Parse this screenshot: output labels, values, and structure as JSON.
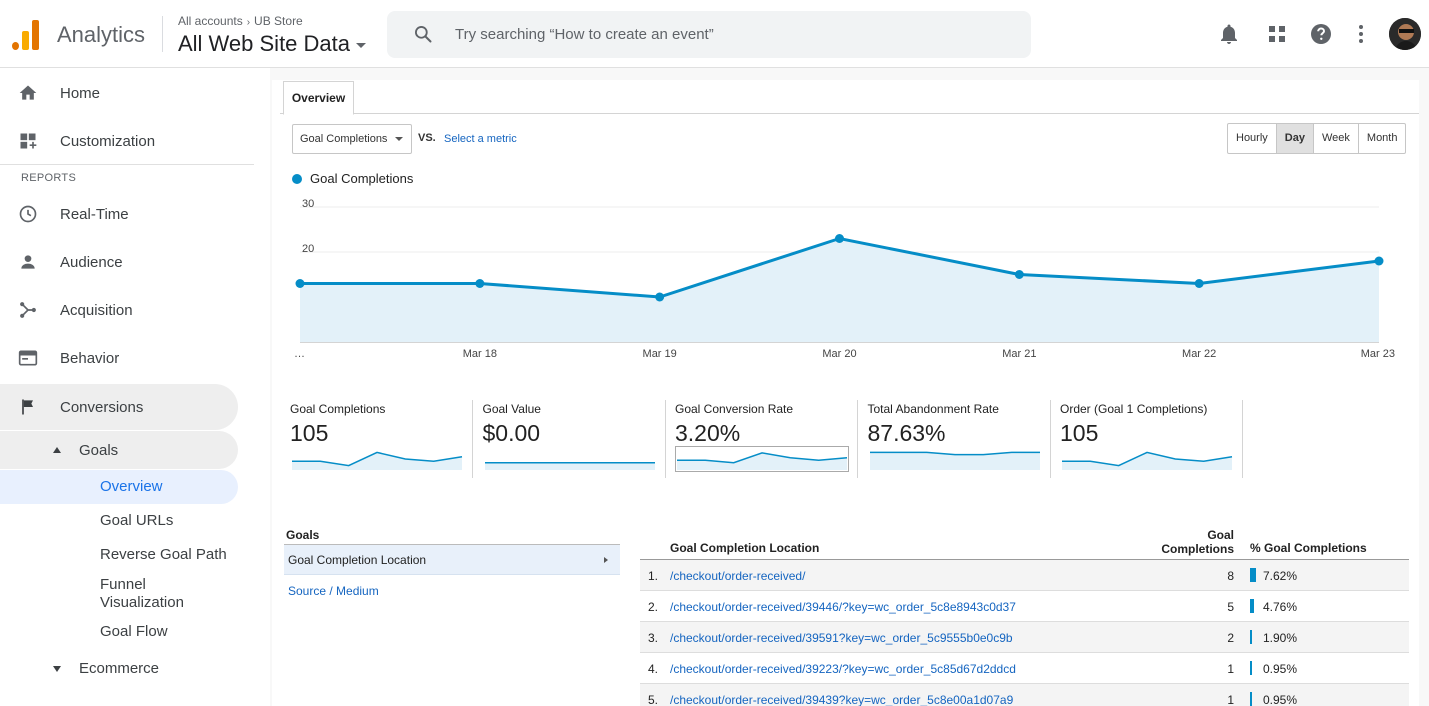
{
  "header": {
    "app_name": "Analytics",
    "breadcrumb_accounts": "All accounts",
    "breadcrumb_arrow": "›",
    "breadcrumb_store": "UB Store",
    "property": "All Web Site Data",
    "search_placeholder": "Try searching “How to create an event”",
    "icons": [
      "bell-icon",
      "apps-grid-icon",
      "help-icon",
      "more-vert-icon"
    ]
  },
  "sidebar": {
    "home": "Home",
    "customization": "Customization",
    "reports_label": "REPORTS",
    "realtime": "Real-Time",
    "audience": "Audience",
    "acquisition": "Acquisition",
    "behavior": "Behavior",
    "conversions": "Conversions",
    "goals": "Goals",
    "overview": "Overview",
    "goal_urls": "Goal URLs",
    "reverse_goal_path": "Reverse Goal Path",
    "funnel_line1": "Funnel",
    "funnel_line2": "Visualization",
    "goal_flow": "Goal Flow",
    "ecommerce": "Ecommerce"
  },
  "main": {
    "tab": "Overview",
    "metric_select": "Goal Completions",
    "vs": "VS.",
    "select_metric": "Select a metric",
    "granularity": [
      {
        "label": "Hourly",
        "active": false
      },
      {
        "label": "Day",
        "active": true
      },
      {
        "label": "Week",
        "active": false
      },
      {
        "label": "Month",
        "active": false
      }
    ],
    "accent": "#058dc7"
  },
  "chart_data": {
    "type": "area",
    "series": [
      {
        "name": "Goal Completions",
        "values": [
          13,
          13,
          10,
          23,
          15,
          13,
          18
        ]
      }
    ],
    "categories": [
      "…",
      "Mar 18",
      "Mar 19",
      "Mar 20",
      "Mar 21",
      "Mar 22",
      "Mar 23"
    ],
    "yticks": [
      10,
      20,
      30
    ],
    "ylim": [
      0,
      30
    ],
    "legend": "top-left",
    "grid": true
  },
  "scorecards": [
    {
      "name": "Goal Completions",
      "value": "105",
      "spark": [
        4,
        4,
        2,
        8,
        5,
        4,
        6
      ]
    },
    {
      "name": "Goal Value",
      "value": "$0.00",
      "spark": [
        1,
        1,
        1,
        1,
        1,
        1,
        1
      ]
    },
    {
      "name": "Goal Conversion Rate",
      "value": "3.20%",
      "spark": [
        4,
        4,
        3,
        7,
        5,
        4,
        5
      ]
    },
    {
      "name": "Total Abandonment Rate",
      "value": "87.63%",
      "spark": [
        8,
        8,
        8,
        7,
        7,
        8,
        8
      ]
    },
    {
      "name": "Order (Goal 1 Completions)",
      "value": "105",
      "spark": [
        4,
        4,
        2,
        8,
        5,
        4,
        6
      ]
    }
  ],
  "goals_panel": {
    "heading": "Goals",
    "selected": "Goal Completion Location",
    "link": "Source / Medium"
  },
  "table": {
    "col_location": "Goal Completion Location",
    "col_count_line1": "Goal",
    "col_count_line2": "Completions",
    "col_pct": "% Goal Completions",
    "rows": [
      {
        "idx": "1.",
        "location": "/checkout/order-received/",
        "count": "8",
        "pct": "7.62%",
        "share": 7.62
      },
      {
        "idx": "2.",
        "location": "/checkout/order-received/39446/?key=wc_order_5c8e8943c0d37",
        "count": "5",
        "pct": "4.76%",
        "share": 4.76
      },
      {
        "idx": "3.",
        "location": "/checkout/order-received/39591?key=wc_order_5c9555b0e0c9b",
        "count": "2",
        "pct": "1.90%",
        "share": 1.9
      },
      {
        "idx": "4.",
        "location": "/checkout/order-received/39223/?key=wc_order_5c85d67d2ddcd",
        "count": "1",
        "pct": "0.95%",
        "share": 0.95
      },
      {
        "idx": "5.",
        "location": "/checkout/order-received/39439?key=wc_order_5c8e00a1d07a9",
        "count": "1",
        "pct": "0.95%",
        "share": 0.95
      }
    ]
  }
}
